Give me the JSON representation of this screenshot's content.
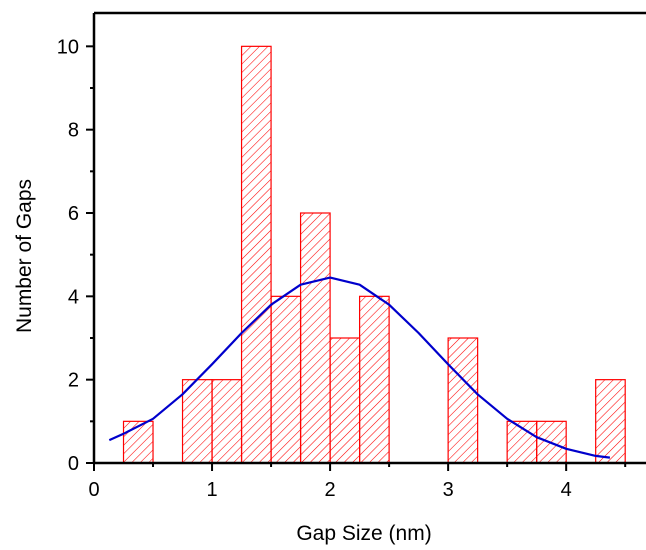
{
  "chart_data": {
    "type": "bar",
    "title": "",
    "xlabel": "Gap Size (nm)",
    "ylabel": "Number of Gaps",
    "xlim": [
      0,
      4.6
    ],
    "ylim": [
      0,
      10.8
    ],
    "x_ticks": [
      "0",
      "1",
      "2",
      "3",
      "4"
    ],
    "y_ticks": [
      "0",
      "2",
      "4",
      "6",
      "8",
      "10"
    ],
    "bin_width": 0.25,
    "bins": [
      {
        "start": 0.25,
        "end": 0.5,
        "count": 1
      },
      {
        "start": 0.75,
        "end": 1.0,
        "count": 2
      },
      {
        "start": 1.0,
        "end": 1.25,
        "count": 2
      },
      {
        "start": 1.25,
        "end": 1.5,
        "count": 10
      },
      {
        "start": 1.5,
        "end": 1.75,
        "count": 4
      },
      {
        "start": 1.75,
        "end": 2.0,
        "count": 6
      },
      {
        "start": 2.0,
        "end": 2.25,
        "count": 3
      },
      {
        "start": 2.25,
        "end": 2.5,
        "count": 4
      },
      {
        "start": 3.0,
        "end": 3.25,
        "count": 3
      },
      {
        "start": 3.5,
        "end": 3.75,
        "count": 1
      },
      {
        "start": 3.75,
        "end": 4.0,
        "count": 1
      },
      {
        "start": 4.25,
        "end": 4.5,
        "count": 2
      }
    ],
    "fit_curve": {
      "type": "gaussian",
      "points": [
        [
          0.13,
          0.55
        ],
        [
          0.25,
          0.7
        ],
        [
          0.5,
          1.06
        ],
        [
          0.75,
          1.65
        ],
        [
          1.0,
          2.37
        ],
        [
          1.25,
          3.12
        ],
        [
          1.5,
          3.8
        ],
        [
          1.75,
          4.28
        ],
        [
          2.0,
          4.45
        ],
        [
          2.25,
          4.28
        ],
        [
          2.5,
          3.8
        ],
        [
          2.75,
          3.12
        ],
        [
          3.0,
          2.37
        ],
        [
          3.25,
          1.65
        ],
        [
          3.5,
          1.06
        ],
        [
          3.75,
          0.62
        ],
        [
          4.0,
          0.34
        ],
        [
          4.25,
          0.17
        ],
        [
          4.37,
          0.13
        ]
      ]
    },
    "colors": {
      "bar": "#ff0000",
      "fit": "#0000cc",
      "axis": "#000000"
    },
    "grid": false
  }
}
